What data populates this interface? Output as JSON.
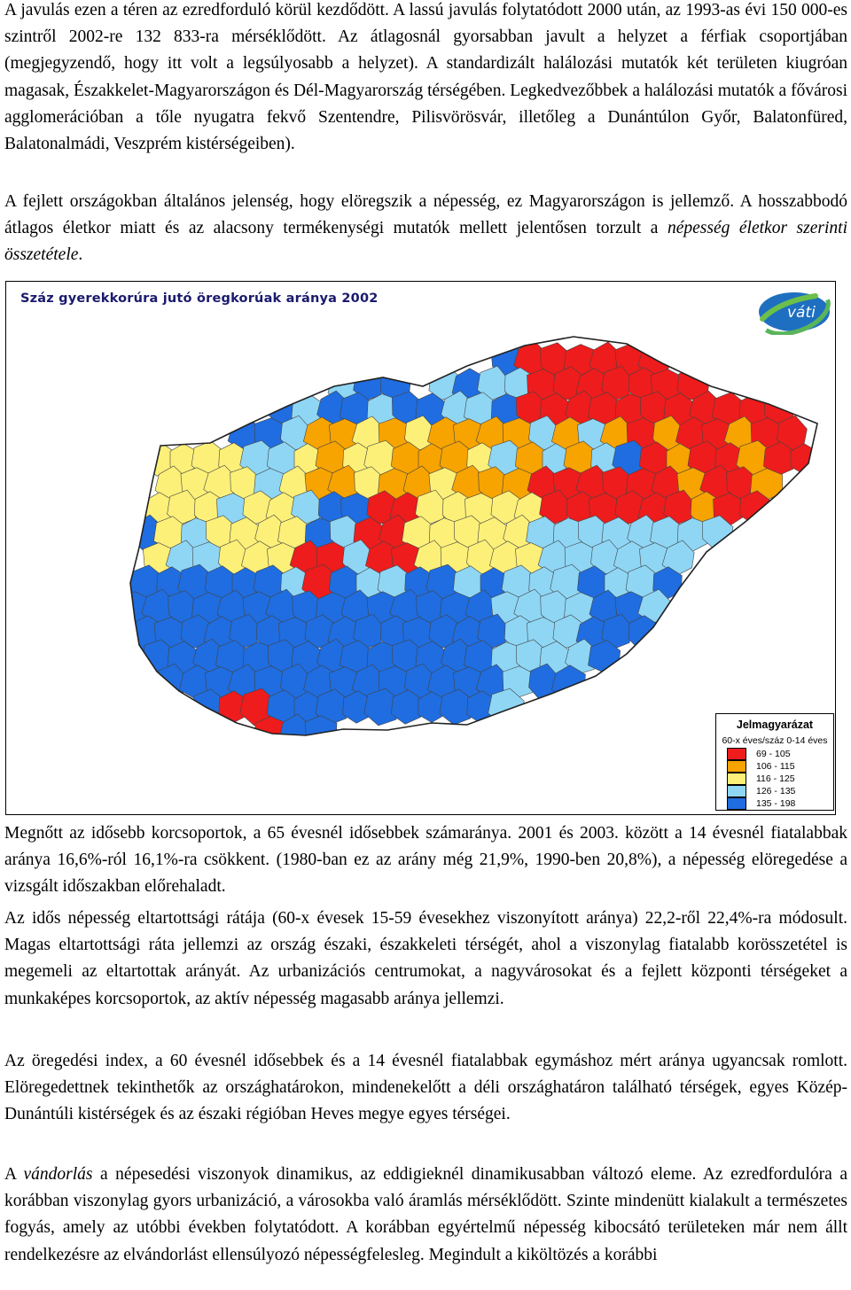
{
  "paragraphs": {
    "p1": "A javulás ezen a téren az ezredforduló körül kezdődött. A lassú javulás folytatódott 2000 után, az 1993-as évi 150 000-es szintről 2002-re 132 833-ra mérséklődött. Az átlagosnál gyorsabban javult a helyzet a férfiak csoportjában (megjegyzendő, hogy itt volt a legsúlyosabb a helyzet). A standardizált halálozási mutatók két területen kiugróan magasak, Északkelet-Magyarországon és Dél-Magyarország térségében. Legkedvezőbbek a halálozási mutatók a fővárosi agglomerációban a tőle nyugatra fekvő Szentendre, Pilisvörösvár, illetőleg a Dunántúlon Győr, Balatonfüred, Balatonalmádi, Veszprém kistérségeiben).",
    "p2_before": "A fejlett országokban általános jelenség, hogy elöregszik a népesség, ez Magyarországon is jellemző. A hosszabbodó átlagos életkor miatt és az alacsony termékenységi mutatók mellett jelentősen torzult a ",
    "p2_italic": "népesség életkor szerinti összetétele",
    "p2_after": ".",
    "p3": "Megnőtt az idősebb korcsoportok, a 65 évesnél idősebbek számaránya. 2001 és 2003. között a 14 évesnél fiatalabbak aránya 16,6%-ról 16,1%-ra csökkent. (1980-ban ez az arány még 21,9%, 1990-ben 20,8%), a népesség elöregedése a vizsgált időszakban előrehaladt.",
    "p4": "Az idős népesség eltartottsági rátája (60-x évesek 15-59 évesekhez viszonyított aránya) 22,2-ről 22,4%-ra módosult. Magas eltartottsági ráta jellemzi az ország északi, északkeleti térségét, ahol a viszonylag fiatalabb korösszetétel is megemeli az eltartottak arányát. Az urbanizációs centrumokat, a nagyvárosokat és a fejlett központi térségeket a munkaképes korcsoportok, az aktív népesség magasabb aránya jellemzi.",
    "p5": "Az öregedési index, a 60 évesnél idősebbek és a 14 évesnél fiatalabbak egymáshoz mért aránya ugyancsak romlott. Elöregedettnek tekinthetők az országhatárokon, mindenekelőtt a déli országhatáron található térségek, egyes Közép-Dunántúli kistérségek és az északi régióban Heves megye egyes térségei.",
    "p6_before": "A ",
    "p6_italic": "vándorlás",
    "p6_after": " a népesedési viszonyok dinamikus, az eddigieknél dinamikusabban változó eleme. Az ezredfordulóra a korábban viszonylag gyors urbanizáció, a városokba való áramlás mérséklődött. Szinte mindenütt kialakult a természetes fogyás, amely az utóbbi években folytatódott. A korábban egyértelmű népesség kibocsátó területeken már nem állt rendelkezésre az elvándorlást ellensúlyozó népességfelesleg. Megindult a kiköltözés a korábbi"
  },
  "map": {
    "title": "Száz gyerekkorúra jutó öregkorúak aránya 2002",
    "logo_text": "váti",
    "legend": {
      "title": "Jelmagyarázat",
      "subtitle": "60-x éves/száz 0-14 éves",
      "classes": [
        {
          "label": "69 - 105",
          "color": "#ee1c1c"
        },
        {
          "label": "106 - 115",
          "color": "#f7a300"
        },
        {
          "label": "116 - 125",
          "color": "#fdf079"
        },
        {
          "label": "126 - 135",
          "color": "#8fd6f5"
        },
        {
          "label": "135 - 198",
          "color": "#1f6de0"
        }
      ]
    }
  }
}
